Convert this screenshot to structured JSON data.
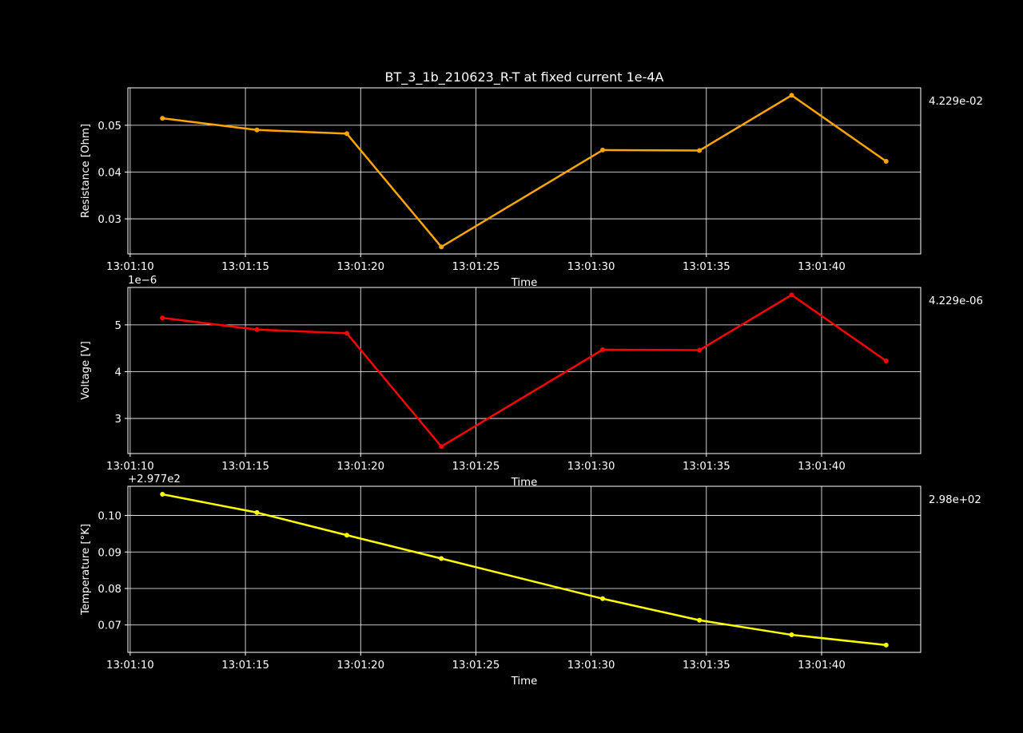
{
  "title": "BT_3_1b_210623_R-T at fixed current 1e-4A",
  "chart_data": [
    {
      "type": "line",
      "ylabel": "Resistance [Ohm]",
      "xlabel": "Time",
      "color": "#ffa500",
      "side_label": "4.229e-02",
      "offset_text": "",
      "x_tick_labels": [
        "13:01:10",
        "13:01:15",
        "13:01:20",
        "13:01:25",
        "13:01:30",
        "13:01:35",
        "13:01:40"
      ],
      "x_ticks": [
        0,
        5,
        10,
        15,
        20,
        25,
        30
      ],
      "x_values": [
        1.4,
        5.5,
        9.4,
        13.5,
        20.5,
        24.7,
        28.7,
        32.8
      ],
      "xlim": [
        -0.1,
        34.3
      ],
      "y_values": [
        0.0515,
        0.049,
        0.0482,
        0.024,
        0.0447,
        0.0446,
        0.0564,
        0.0423
      ],
      "ylim": [
        0.0225,
        0.058
      ],
      "y_ticks": [
        0.03,
        0.04,
        0.05
      ],
      "y_tick_labels": [
        "0.03",
        "0.04",
        "0.05"
      ],
      "grid": true
    },
    {
      "type": "line",
      "ylabel": "Voltage [V]",
      "xlabel": "Time",
      "color": "#ff0000",
      "side_label": "4.229e-06",
      "offset_text": "1e−6",
      "x_tick_labels": [
        "13:01:10",
        "13:01:15",
        "13:01:20",
        "13:01:25",
        "13:01:30",
        "13:01:35",
        "13:01:40"
      ],
      "x_ticks": [
        0,
        5,
        10,
        15,
        20,
        25,
        30
      ],
      "x_values": [
        1.4,
        5.5,
        9.4,
        13.5,
        20.5,
        24.7,
        28.7,
        32.8
      ],
      "xlim": [
        -0.1,
        34.3
      ],
      "y_values": [
        5.15,
        4.9,
        4.82,
        2.4,
        4.47,
        4.46,
        5.64,
        4.23
      ],
      "ylim": [
        2.25,
        5.8
      ],
      "y_ticks": [
        3,
        4,
        5
      ],
      "y_tick_labels": [
        "3",
        "4",
        "5"
      ],
      "grid": true
    },
    {
      "type": "line",
      "ylabel": "Temperature [°K]",
      "xlabel": "Time",
      "color": "#ffff00",
      "side_label": "2.98e+02",
      "offset_text": "+2.977e2",
      "x_tick_labels": [
        "13:01:10",
        "13:01:15",
        "13:01:20",
        "13:01:25",
        "13:01:30",
        "13:01:35",
        "13:01:40"
      ],
      "x_ticks": [
        0,
        5,
        10,
        15,
        20,
        25,
        30
      ],
      "x_values": [
        1.4,
        5.5,
        9.4,
        13.5,
        20.5,
        24.7,
        28.7,
        32.8
      ],
      "xlim": [
        -0.1,
        34.3
      ],
      "y_values": [
        0.1058,
        0.1008,
        0.0946,
        0.0882,
        0.0772,
        0.0713,
        0.0673,
        0.0645
      ],
      "ylim": [
        0.0625,
        0.108
      ],
      "y_ticks": [
        0.07,
        0.08,
        0.09,
        0.1
      ],
      "y_tick_labels": [
        "0.07",
        "0.08",
        "0.09",
        "0.10"
      ],
      "grid": true
    }
  ]
}
